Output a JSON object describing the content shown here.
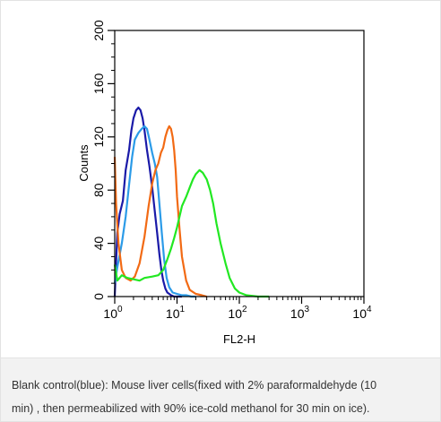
{
  "colors": {
    "blank_control": "#1a1aa8",
    "sample_light_blue": "#2b9be8",
    "sample_orange": "#f26a14",
    "sample_green": "#22e822",
    "caption_background": "#f2f2f2"
  },
  "caption": {
    "line1": "Blank control(blue): Mouse liver cells(fixed with 2% paraformaldehyde (10",
    "line2": "min) , then permeabilized with 90% ice-cold methanol for 30 min on ice)."
  },
  "chart_data": {
    "type": "line",
    "title": "",
    "xlabel": "FL2-H",
    "ylabel": "Counts",
    "x_scale": "log",
    "xlim": [
      1,
      10000
    ],
    "ylim": [
      0,
      200
    ],
    "x_ticks": [
      {
        "value": 1,
        "base": "10",
        "exp": "0"
      },
      {
        "value": 10,
        "base": "10",
        "exp": "1"
      },
      {
        "value": 100,
        "base": "10",
        "exp": "2"
      },
      {
        "value": 1000,
        "base": "10",
        "exp": "3"
      },
      {
        "value": 10000,
        "base": "10",
        "exp": "4"
      }
    ],
    "y_ticks": [
      "0",
      "40",
      "80",
      "120",
      "160",
      "200"
    ],
    "grid": false,
    "series": [
      {
        "color": "#1a1aa8",
        "x": [
          1,
          1.1,
          1.2,
          1.35,
          1.5,
          1.7,
          1.85,
          2,
          2.2,
          2.4,
          2.6,
          2.8,
          3,
          3.3,
          3.6,
          4,
          4.4,
          4.8,
          5.2,
          5.6,
          6,
          6.5,
          7,
          7.5,
          8,
          9,
          10,
          12
        ],
        "y": [
          0,
          48,
          62,
          72,
          95,
          110,
          125,
          134,
          140,
          142,
          140,
          134,
          125,
          110,
          98,
          82,
          64,
          48,
          32,
          20,
          12,
          6,
          3,
          2,
          1,
          0,
          0,
          0
        ]
      },
      {
        "color": "#2b9be8",
        "x": [
          1,
          1.1,
          1.3,
          1.5,
          1.7,
          1.9,
          2.1,
          2.4,
          2.7,
          3,
          3.3,
          3.6,
          4,
          4.4,
          4.8,
          5.2,
          5.7,
          6.2,
          6.8,
          7.5,
          8.5,
          10,
          12,
          14,
          17,
          20
        ],
        "y": [
          10,
          22,
          40,
          60,
          84,
          105,
          118,
          123,
          126,
          128,
          126,
          118,
          108,
          100,
          90,
          70,
          48,
          28,
          14,
          7,
          3,
          2,
          1,
          1,
          0,
          0
        ]
      },
      {
        "color": "#f26a14",
        "x": [
          1,
          1.05,
          1.15,
          1.3,
          1.5,
          1.8,
          2.1,
          2.5,
          3,
          3.5,
          4,
          4.5,
          5,
          5.5,
          6,
          6.5,
          7,
          7.5,
          8,
          8.5,
          9,
          9.5,
          10,
          11,
          12,
          14,
          16,
          20,
          25,
          30
        ],
        "y": [
          105,
          70,
          40,
          20,
          14,
          12,
          15,
          25,
          45,
          68,
          85,
          95,
          100,
          108,
          112,
          120,
          125,
          128,
          126,
          120,
          110,
          95,
          75,
          50,
          30,
          12,
          5,
          2,
          1,
          0
        ]
      },
      {
        "color": "#22e822",
        "x": [
          1,
          1.1,
          1.3,
          1.6,
          2,
          2.5,
          3,
          4,
          5,
          6,
          7,
          8,
          9,
          10,
          12,
          14,
          16,
          18,
          20,
          23,
          26,
          30,
          34,
          38,
          43,
          50,
          60,
          70,
          85,
          100,
          130,
          200,
          300
        ],
        "y": [
          24,
          12,
          16,
          14,
          13,
          12,
          14,
          15,
          16,
          20,
          28,
          36,
          44,
          52,
          68,
          75,
          82,
          88,
          92,
          95,
          93,
          88,
          80,
          70,
          55,
          40,
          25,
          14,
          6,
          3,
          1,
          0,
          0
        ]
      }
    ]
  }
}
